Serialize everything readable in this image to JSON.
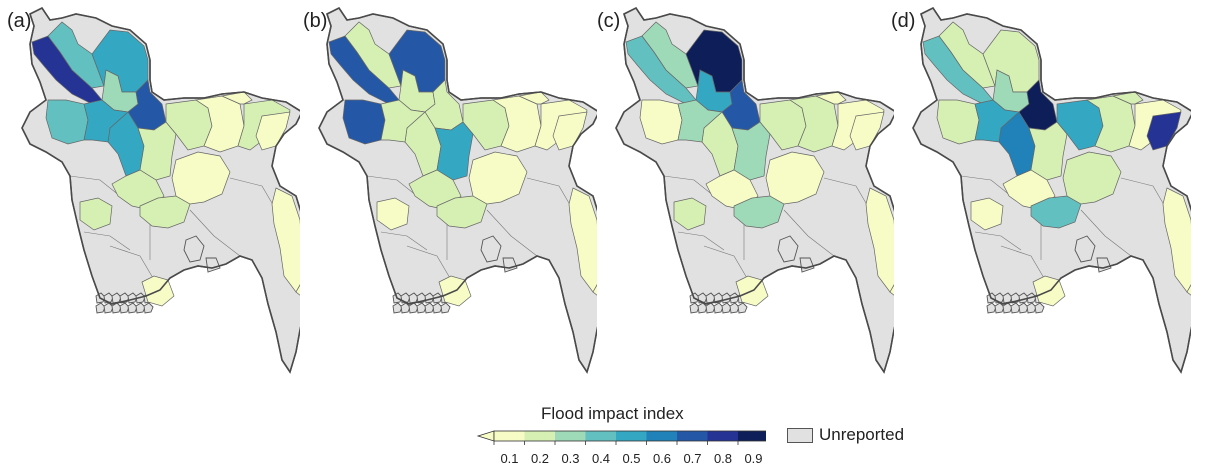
{
  "legend": {
    "title": "Flood impact index",
    "ticks": [
      "0.1",
      "0.2",
      "0.3",
      "0.4",
      "0.5",
      "0.6",
      "0.7",
      "0.8",
      "0.9"
    ],
    "unreported_label": "Unreported",
    "colors": [
      "#f7fcc6",
      "#d6efb3",
      "#9ed9b8",
      "#63c0c0",
      "#34a7c3",
      "#2182b9",
      "#2458a6",
      "#253494",
      "#0d1e58"
    ],
    "unreported_color": "#e1e1e1"
  },
  "panels": [
    {
      "label": "(a)",
      "regions": {
        "nw1": 7,
        "nw2": 3,
        "n1": 4,
        "n2": 2,
        "nc1": 6,
        "nc2": 4,
        "w1": 3,
        "c1": 4,
        "c2": 1,
        "c3": 1,
        "c4": 1,
        "e1": 0,
        "e2": 1,
        "ne1": 0,
        "ne2": 0,
        "sw1": 1,
        "cs1": 1,
        "s1": 0,
        "s2": 0,
        "se1": 0,
        "tip": 0
      }
    },
    {
      "label": "(b)",
      "regions": {
        "nw1": 6,
        "nw2": 1,
        "n1": 6,
        "n2": 1,
        "nc1": 1,
        "nc2": 1,
        "w1": 6,
        "c1": 1,
        "c2": 4,
        "c3": 1,
        "c4": 1,
        "e1": 0,
        "e2": 0,
        "ne1": 0,
        "ne2": 0,
        "sw1": 0,
        "cs1": 1,
        "s1": 0,
        "s2": 0,
        "se1": 0,
        "tip": 0
      }
    },
    {
      "label": "(c)",
      "regions": {
        "nw1": 3,
        "nw2": 2,
        "n1": 8,
        "n2": 4,
        "nc1": 6,
        "nc2": 1,
        "w1": 0,
        "c1": 2,
        "c2": 2,
        "c3": 1,
        "c4": 0,
        "e1": 1,
        "e2": 0,
        "ne1": 0,
        "ne2": 0,
        "sw1": 1,
        "cs1": 2,
        "s1": 0,
        "s2": 0,
        "se1": 0,
        "tip": 0
      }
    },
    {
      "label": "(d)",
      "regions": {
        "nw1": 3,
        "nw2": 1,
        "n1": 1,
        "n2": 2,
        "nc1": 8,
        "nc2": 5,
        "w1": 1,
        "c1": 4,
        "c2": 1,
        "c3": 4,
        "c4": 0,
        "e1": 1,
        "e2": 0,
        "ne1": 1,
        "ne2": 7,
        "sw1": 0,
        "cs1": 3,
        "s1": 0,
        "s2": 1,
        "se1": 0,
        "tip": 0
      }
    }
  ]
}
